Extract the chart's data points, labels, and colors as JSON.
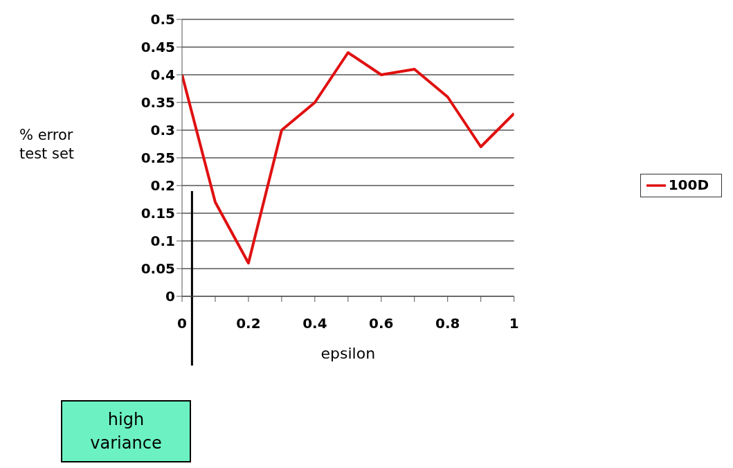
{
  "chart_data": {
    "type": "line",
    "xlabel": "epsilon",
    "ylabel": "% error test set",
    "x": [
      0,
      0.1,
      0.2,
      0.3,
      0.4,
      0.5,
      0.6,
      0.7,
      0.8,
      0.9,
      1
    ],
    "series": [
      {
        "name": "100D",
        "color": "#e01010",
        "values": [
          0.4,
          0.17,
          0.06,
          0.3,
          0.35,
          0.44,
          0.4,
          0.41,
          0.36,
          0.27,
          0.33
        ]
      }
    ],
    "xlim": [
      0,
      1
    ],
    "xticks": [
      0,
      {
        "value": 0.1,
        "label": null
      },
      0.2,
      {
        "value": 0.3,
        "label": null
      },
      0.4,
      {
        "value": 0.5,
        "label": null
      },
      0.6,
      {
        "value": 0.7,
        "label": null
      },
      0.8,
      {
        "value": 0.9,
        "label": null
      },
      1
    ],
    "ylim": [
      0,
      0.5
    ],
    "yticks": [
      0,
      0.05,
      0.1,
      0.15,
      0.2,
      0.25,
      0.3,
      0.35,
      0.4,
      0.45,
      0.5
    ],
    "grid": "y",
    "legend": "right",
    "marker": "none",
    "line_style": "solid",
    "ref_lines": [
      {
        "axis": "x",
        "value": 0.03,
        "label": "high variance",
        "color": "#000000"
      }
    ]
  }
}
